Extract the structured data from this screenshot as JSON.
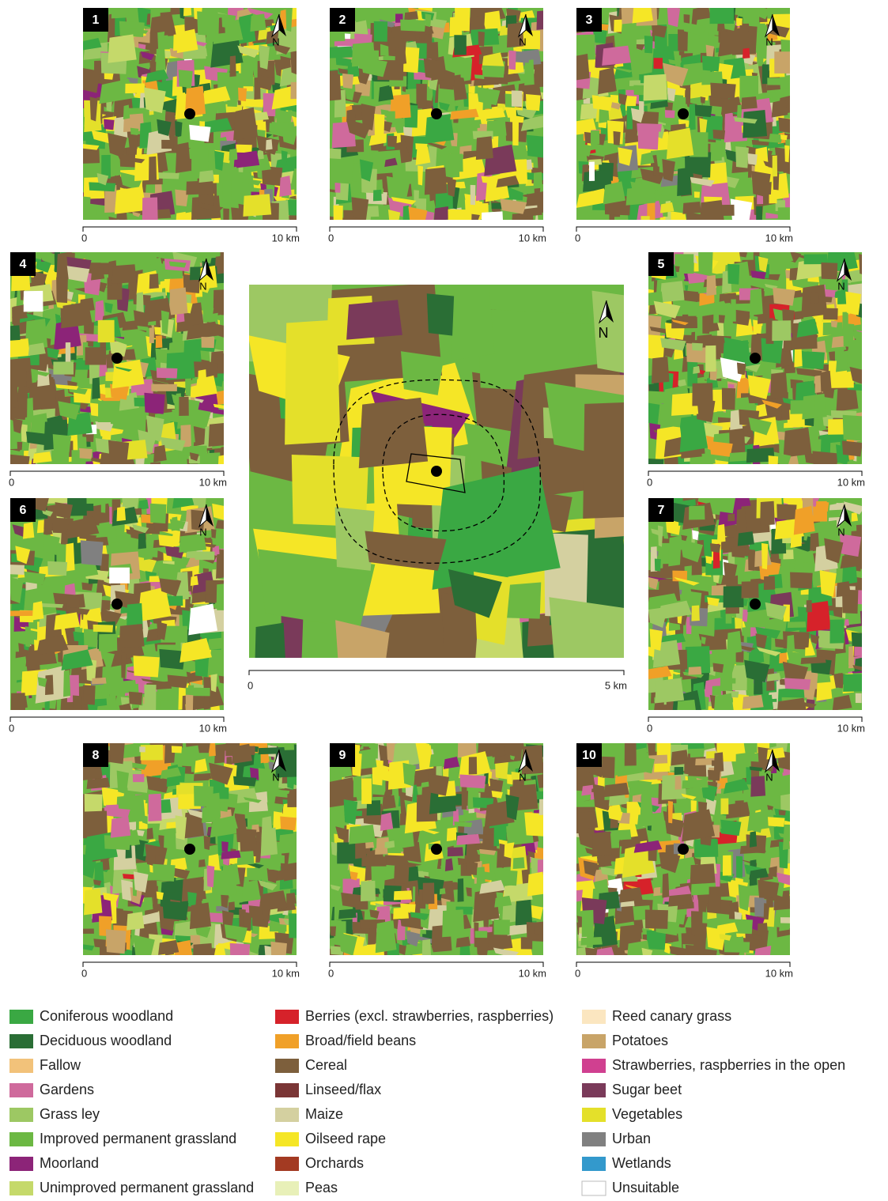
{
  "north_label": "N",
  "panels": [
    {
      "number": "1",
      "scale_start": "0",
      "scale_end": "10 km"
    },
    {
      "number": "2",
      "scale_start": "0",
      "scale_end": "10 km"
    },
    {
      "number": "3",
      "scale_start": "0",
      "scale_end": "10 km"
    },
    {
      "number": "4",
      "scale_start": "0",
      "scale_end": "10 km"
    },
    {
      "number": "5",
      "scale_start": "0",
      "scale_end": "10 km"
    },
    {
      "number": "6",
      "scale_start": "0",
      "scale_end": "10 km"
    },
    {
      "number": "7",
      "scale_start": "0",
      "scale_end": "10 km"
    },
    {
      "number": "8",
      "scale_start": "0",
      "scale_end": "10 km"
    },
    {
      "number": "9",
      "scale_start": "0",
      "scale_end": "10 km"
    },
    {
      "number": "10",
      "scale_start": "0",
      "scale_end": "10 km"
    }
  ],
  "center_map": {
    "scale_start": "0",
    "scale_end": "5 km"
  },
  "legend": [
    {
      "name": "Coniferous woodland",
      "color": "#3aa843"
    },
    {
      "name": "Deciduous woodland",
      "color": "#2a6e35"
    },
    {
      "name": "Fallow",
      "color": "#f2c27a"
    },
    {
      "name": "Gardens",
      "color": "#cf6a9c"
    },
    {
      "name": "Grass ley",
      "color": "#9dc863"
    },
    {
      "name": "Improved permanent grassland",
      "color": "#6cb843"
    },
    {
      "name": "Moorland",
      "color": "#8c2478"
    },
    {
      "name": "Unimproved permanent grassland",
      "color": "#c5d96a"
    },
    {
      "name": "Berries (excl. strawberries, raspberries)",
      "color": "#d6222a"
    },
    {
      "name": "Broad/field beans",
      "color": "#f0a028"
    },
    {
      "name": "Cereal",
      "color": "#7d5f3c"
    },
    {
      "name": "Linseed/flax",
      "color": "#7a3535"
    },
    {
      "name": "Maize",
      "color": "#d4d0a0"
    },
    {
      "name": "Oilseed rape",
      "color": "#f5e626"
    },
    {
      "name": "Orchards",
      "color": "#a33a22"
    },
    {
      "name": "Peas",
      "color": "#e8f0b8"
    },
    {
      "name": "Reed canary grass",
      "color": "#fbe6c0"
    },
    {
      "name": "Potatoes",
      "color": "#c8a468"
    },
    {
      "name": "Strawberries, raspberries in the open",
      "color": "#d04090"
    },
    {
      "name": "Sugar beet",
      "color": "#7a3a5a"
    },
    {
      "name": "Vegetables",
      "color": "#e4e02a"
    },
    {
      "name": "Urban",
      "color": "#808080"
    },
    {
      "name": "Wetlands",
      "color": "#3399cc"
    },
    {
      "name": "Unsuitable",
      "color": "#ffffff"
    }
  ]
}
